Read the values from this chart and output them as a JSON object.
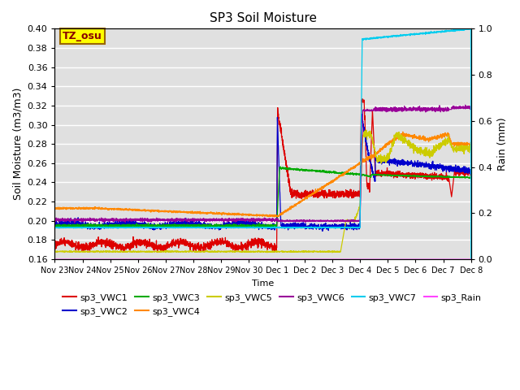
{
  "title": "SP3 Soil Moisture",
  "ylabel_left": "Soil Moisture (m3/m3)",
  "ylabel_right": "Rain (mm)",
  "xlabel": "Time",
  "ylim_left": [
    0.16,
    0.4
  ],
  "ylim_right": [
    0.0,
    1.0
  ],
  "background_color": "#e0e0e0",
  "series_colors": {
    "sp3_VWC1": "#dd0000",
    "sp3_VWC2": "#0000cc",
    "sp3_VWC3": "#00aa00",
    "sp3_VWC4": "#ff8800",
    "sp3_VWC5": "#cccc00",
    "sp3_VWC6": "#990099",
    "sp3_VWC7": "#00ccee",
    "sp3_Rain": "#ff44ff"
  },
  "x_tick_labels": [
    "Nov 23",
    "Nov 24",
    "Nov 25",
    "Nov 26",
    "Nov 27",
    "Nov 28",
    "Nov 29",
    "Nov 30",
    "Dec 1",
    "Dec 2",
    "Dec 3",
    "Dec 4",
    "Dec 5",
    "Dec 6",
    "Dec 7",
    "Dec 8"
  ],
  "x_tick_days": [
    0,
    1,
    2,
    3,
    4,
    5,
    6,
    7,
    8,
    9,
    10,
    11,
    12,
    13,
    14,
    15
  ],
  "annotation_text": "TZ_osu",
  "annotation_bg": "#ffff00",
  "annotation_border": "#996600"
}
